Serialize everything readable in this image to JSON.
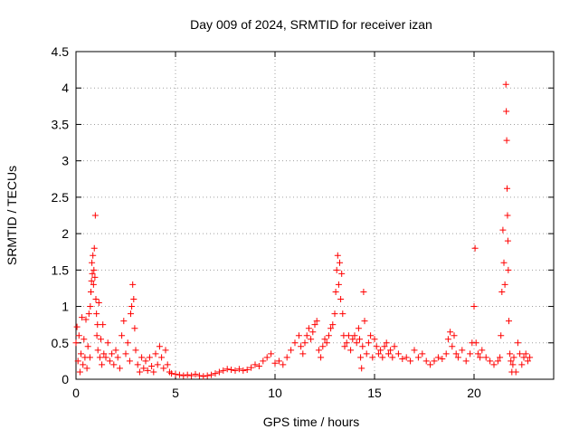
{
  "chart_data": {
    "type": "scatter",
    "title": "Day 009 of 2024, SRMTID for receiver izan",
    "xlabel": "GPS time / hours",
    "ylabel": "SRMTID / TECUs",
    "xlim": [
      0,
      24
    ],
    "ylim": [
      0,
      4.5
    ],
    "x_ticks": [
      {
        "value": 0,
        "label": "0"
      },
      {
        "value": 5,
        "label": "5"
      },
      {
        "value": 10,
        "label": "10"
      },
      {
        "value": 15,
        "label": "15"
      },
      {
        "value": 20,
        "label": "20"
      }
    ],
    "y_ticks": [
      {
        "value": 0,
        "label": "0"
      },
      {
        "value": 0.5,
        "label": "0.5"
      },
      {
        "value": 1,
        "label": "1"
      },
      {
        "value": 1.5,
        "label": "1.5"
      },
      {
        "value": 2,
        "label": "2"
      },
      {
        "value": 2.5,
        "label": "2.5"
      },
      {
        "value": 3,
        "label": "3"
      },
      {
        "value": 3.5,
        "label": "3.5"
      },
      {
        "value": 4,
        "label": "4"
      },
      {
        "value": 4.5,
        "label": "4.5"
      }
    ],
    "grid": true,
    "marker": "+",
    "marker_color": "#ff0000",
    "series": [
      {
        "name": "SRMTID",
        "points": [
          [
            0.0,
            0.5
          ],
          [
            0.05,
            0.72
          ],
          [
            0.1,
            0.25
          ],
          [
            0.15,
            0.6
          ],
          [
            0.2,
            0.1
          ],
          [
            0.25,
            0.35
          ],
          [
            0.3,
            0.85
          ],
          [
            0.35,
            0.2
          ],
          [
            0.4,
            0.55
          ],
          [
            0.45,
            0.3
          ],
          [
            0.5,
            0.82
          ],
          [
            0.55,
            0.15
          ],
          [
            0.6,
            0.45
          ],
          [
            0.65,
            0.9
          ],
          [
            0.7,
            0.3
          ],
          [
            0.72,
            1.0
          ],
          [
            0.75,
            1.2
          ],
          [
            0.78,
            1.35
          ],
          [
            0.8,
            1.6
          ],
          [
            0.82,
            1.45
          ],
          [
            0.85,
            1.7
          ],
          [
            0.88,
            1.3
          ],
          [
            0.9,
            1.5
          ],
          [
            0.92,
            1.8
          ],
          [
            0.95,
            1.4
          ],
          [
            0.97,
            2.25
          ],
          [
            1.0,
            1.1
          ],
          [
            1.03,
            0.9
          ],
          [
            1.05,
            0.6
          ],
          [
            1.08,
            0.75
          ],
          [
            1.1,
            0.4
          ],
          [
            1.15,
            1.05
          ],
          [
            1.2,
            0.3
          ],
          [
            1.25,
            0.55
          ],
          [
            1.3,
            0.2
          ],
          [
            1.35,
            0.75
          ],
          [
            1.4,
            0.35
          ],
          [
            1.5,
            0.3
          ],
          [
            1.6,
            0.5
          ],
          [
            1.7,
            0.25
          ],
          [
            1.8,
            0.35
          ],
          [
            1.9,
            0.2
          ],
          [
            2.0,
            0.4
          ],
          [
            2.1,
            0.3
          ],
          [
            2.2,
            0.15
          ],
          [
            2.3,
            0.6
          ],
          [
            2.4,
            0.8
          ],
          [
            2.5,
            0.35
          ],
          [
            2.6,
            0.5
          ],
          [
            2.7,
            0.25
          ],
          [
            2.75,
            0.9
          ],
          [
            2.8,
            1.0
          ],
          [
            2.85,
            1.3
          ],
          [
            2.9,
            1.1
          ],
          [
            2.95,
            0.7
          ],
          [
            3.0,
            0.4
          ],
          [
            3.1,
            0.2
          ],
          [
            3.2,
            0.1
          ],
          [
            3.3,
            0.3
          ],
          [
            3.4,
            0.15
          ],
          [
            3.5,
            0.25
          ],
          [
            3.6,
            0.12
          ],
          [
            3.7,
            0.3
          ],
          [
            3.8,
            0.18
          ],
          [
            3.9,
            0.1
          ],
          [
            4.0,
            0.35
          ],
          [
            4.1,
            0.2
          ],
          [
            4.2,
            0.45
          ],
          [
            4.3,
            0.3
          ],
          [
            4.4,
            0.15
          ],
          [
            4.5,
            0.4
          ],
          [
            4.6,
            0.2
          ],
          [
            4.7,
            0.1
          ],
          [
            4.8,
            0.08
          ],
          [
            5.0,
            0.07
          ],
          [
            5.2,
            0.06
          ],
          [
            5.4,
            0.05
          ],
          [
            5.6,
            0.06
          ],
          [
            5.8,
            0.05
          ],
          [
            6.0,
            0.07
          ],
          [
            6.2,
            0.05
          ],
          [
            6.4,
            0.04
          ],
          [
            6.6,
            0.05
          ],
          [
            6.8,
            0.06
          ],
          [
            7.0,
            0.08
          ],
          [
            7.2,
            0.1
          ],
          [
            7.4,
            0.12
          ],
          [
            7.6,
            0.14
          ],
          [
            7.8,
            0.13
          ],
          [
            8.0,
            0.12
          ],
          [
            8.2,
            0.14
          ],
          [
            8.4,
            0.12
          ],
          [
            8.6,
            0.13
          ],
          [
            8.8,
            0.16
          ],
          [
            9.0,
            0.2
          ],
          [
            9.2,
            0.18
          ],
          [
            9.4,
            0.25
          ],
          [
            9.6,
            0.3
          ],
          [
            9.8,
            0.35
          ],
          [
            10.0,
            0.22
          ],
          [
            10.2,
            0.25
          ],
          [
            10.4,
            0.2
          ],
          [
            10.6,
            0.3
          ],
          [
            10.8,
            0.4
          ],
          [
            11.0,
            0.5
          ],
          [
            11.2,
            0.6
          ],
          [
            11.3,
            0.45
          ],
          [
            11.4,
            0.35
          ],
          [
            11.5,
            0.5
          ],
          [
            11.6,
            0.6
          ],
          [
            11.7,
            0.7
          ],
          [
            11.8,
            0.55
          ],
          [
            11.9,
            0.65
          ],
          [
            12.0,
            0.75
          ],
          [
            12.1,
            0.8
          ],
          [
            12.2,
            0.4
          ],
          [
            12.3,
            0.3
          ],
          [
            12.4,
            0.45
          ],
          [
            12.5,
            0.55
          ],
          [
            12.6,
            0.5
          ],
          [
            12.7,
            0.6
          ],
          [
            12.8,
            0.7
          ],
          [
            12.9,
            0.75
          ],
          [
            13.0,
            0.9
          ],
          [
            13.05,
            1.2
          ],
          [
            13.1,
            1.5
          ],
          [
            13.15,
            1.7
          ],
          [
            13.2,
            1.3
          ],
          [
            13.25,
            1.6
          ],
          [
            13.3,
            1.1
          ],
          [
            13.35,
            1.45
          ],
          [
            13.4,
            0.9
          ],
          [
            13.45,
            0.6
          ],
          [
            13.5,
            0.45
          ],
          [
            13.6,
            0.5
          ],
          [
            13.7,
            0.6
          ],
          [
            13.8,
            0.4
          ],
          [
            13.9,
            0.55
          ],
          [
            14.0,
            0.6
          ],
          [
            14.1,
            0.5
          ],
          [
            14.2,
            0.7
          ],
          [
            14.25,
            0.55
          ],
          [
            14.3,
            0.3
          ],
          [
            14.35,
            0.15
          ],
          [
            14.4,
            0.45
          ],
          [
            14.45,
            1.2
          ],
          [
            14.5,
            0.8
          ],
          [
            14.6,
            0.35
          ],
          [
            14.7,
            0.5
          ],
          [
            14.8,
            0.6
          ],
          [
            14.9,
            0.3
          ],
          [
            15.0,
            0.55
          ],
          [
            15.1,
            0.45
          ],
          [
            15.2,
            0.35
          ],
          [
            15.3,
            0.4
          ],
          [
            15.4,
            0.3
          ],
          [
            15.5,
            0.45
          ],
          [
            15.6,
            0.5
          ],
          [
            15.7,
            0.35
          ],
          [
            15.8,
            0.4
          ],
          [
            15.9,
            0.3
          ],
          [
            16.0,
            0.45
          ],
          [
            16.2,
            0.35
          ],
          [
            16.4,
            0.28
          ],
          [
            16.6,
            0.3
          ],
          [
            16.8,
            0.25
          ],
          [
            17.0,
            0.4
          ],
          [
            17.2,
            0.3
          ],
          [
            17.4,
            0.35
          ],
          [
            17.6,
            0.25
          ],
          [
            17.8,
            0.2
          ],
          [
            18.0,
            0.25
          ],
          [
            18.2,
            0.3
          ],
          [
            18.4,
            0.28
          ],
          [
            18.6,
            0.35
          ],
          [
            18.7,
            0.55
          ],
          [
            18.8,
            0.65
          ],
          [
            18.9,
            0.45
          ],
          [
            19.0,
            0.6
          ],
          [
            19.1,
            0.35
          ],
          [
            19.2,
            0.3
          ],
          [
            19.4,
            0.4
          ],
          [
            19.6,
            0.25
          ],
          [
            19.8,
            0.35
          ],
          [
            19.9,
            0.5
          ],
          [
            20.0,
            1.0
          ],
          [
            20.05,
            1.8
          ],
          [
            20.1,
            0.5
          ],
          [
            20.2,
            0.35
          ],
          [
            20.3,
            0.3
          ],
          [
            20.4,
            0.4
          ],
          [
            20.6,
            0.3
          ],
          [
            20.8,
            0.25
          ],
          [
            21.0,
            0.2
          ],
          [
            21.2,
            0.25
          ],
          [
            21.3,
            0.3
          ],
          [
            21.35,
            0.6
          ],
          [
            21.4,
            1.2
          ],
          [
            21.45,
            2.05
          ],
          [
            21.5,
            1.6
          ],
          [
            21.55,
            1.3
          ],
          [
            21.6,
            4.05
          ],
          [
            21.62,
            3.68
          ],
          [
            21.64,
            3.28
          ],
          [
            21.66,
            2.62
          ],
          [
            21.68,
            2.25
          ],
          [
            21.7,
            1.9
          ],
          [
            21.72,
            1.5
          ],
          [
            21.75,
            0.8
          ],
          [
            21.8,
            0.35
          ],
          [
            21.85,
            0.25
          ],
          [
            21.9,
            0.1
          ],
          [
            21.95,
            0.2
          ],
          [
            22.0,
            0.3
          ],
          [
            22.1,
            0.1
          ],
          [
            22.2,
            0.5
          ],
          [
            22.3,
            0.35
          ],
          [
            22.4,
            0.2
          ],
          [
            22.5,
            0.3
          ],
          [
            22.6,
            0.35
          ],
          [
            22.7,
            0.25
          ],
          [
            22.8,
            0.3
          ]
        ]
      }
    ]
  }
}
